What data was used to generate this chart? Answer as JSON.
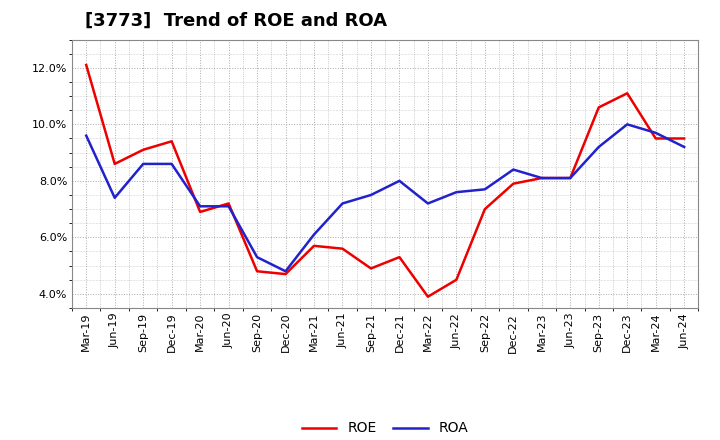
{
  "title": "[3773]  Trend of ROE and ROA",
  "labels": [
    "Mar-19",
    "Jun-19",
    "Sep-19",
    "Dec-19",
    "Mar-20",
    "Jun-20",
    "Sep-20",
    "Dec-20",
    "Mar-21",
    "Jun-21",
    "Sep-21",
    "Dec-21",
    "Mar-22",
    "Jun-22",
    "Sep-22",
    "Dec-22",
    "Mar-23",
    "Jun-23",
    "Sep-23",
    "Dec-23",
    "Mar-24",
    "Jun-24"
  ],
  "ROE": [
    12.1,
    8.6,
    9.1,
    9.4,
    6.9,
    7.2,
    4.8,
    4.7,
    5.7,
    5.6,
    4.9,
    5.3,
    3.9,
    4.5,
    7.0,
    7.9,
    8.1,
    8.1,
    10.6,
    11.1,
    9.5,
    9.5
  ],
  "ROA": [
    9.6,
    7.4,
    8.6,
    8.6,
    7.1,
    7.1,
    5.3,
    4.8,
    6.1,
    7.2,
    7.5,
    8.0,
    7.2,
    7.6,
    7.7,
    8.4,
    8.1,
    8.1,
    9.2,
    10.0,
    9.7,
    9.2
  ],
  "roe_color": "#ee0000",
  "roa_color": "#2222cc",
  "ylim": [
    3.5,
    13.0
  ],
  "yticks": [
    4.0,
    6.0,
    8.0,
    10.0,
    12.0
  ],
  "bg_color": "#ffffff",
  "plot_bg_color": "#ffffff",
  "grid_color": "#aaaaaa",
  "line_width": 1.8,
  "title_fontsize": 13,
  "tick_fontsize": 8,
  "legend_fontsize": 10
}
